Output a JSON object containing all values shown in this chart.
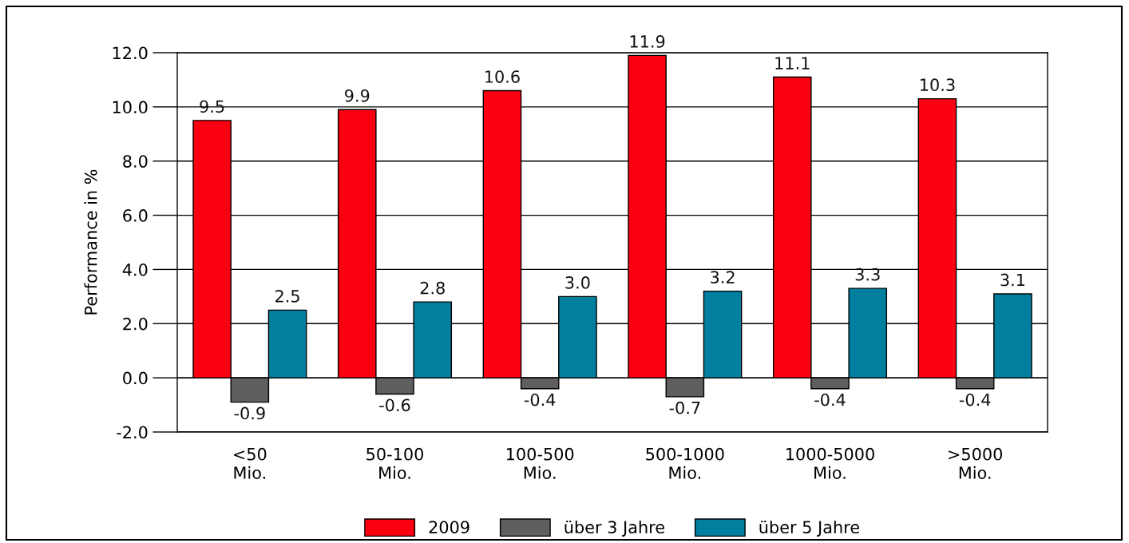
{
  "chart_data": {
    "type": "bar",
    "ylabel": "Performance in %",
    "categories": [
      "<50\nMio.",
      "50-100\nMio.",
      "100-500\nMio.",
      "500-1000\nMio.",
      "1000-5000\nMio.",
      ">5000\nMio."
    ],
    "series": [
      {
        "name": "2009",
        "color": "#fb0010",
        "values": [
          9.5,
          9.9,
          10.6,
          11.9,
          11.1,
          10.3
        ],
        "value_labels": [
          "9.5",
          "9.9",
          "10.6",
          "11.9",
          "11.1",
          "10.3"
        ]
      },
      {
        "name": "über 3 Jahre",
        "color": "#5f5f5f",
        "values": [
          -0.9,
          -0.6,
          -0.4,
          -0.7,
          -0.4,
          -0.4
        ],
        "value_labels": [
          "-0.9",
          "-0.6",
          "-0.4",
          "-0.7",
          "-0.4",
          "-0.4"
        ]
      },
      {
        "name": "über 5 Jahre",
        "color": "#00809e",
        "values": [
          2.5,
          2.8,
          3.0,
          3.2,
          3.3,
          3.1
        ],
        "value_labels": [
          "2.5",
          "2.8",
          "3.0",
          "3.2",
          "3.3",
          "3.1"
        ]
      }
    ],
    "ylim": [
      -2,
      12
    ],
    "yticks": [
      {
        "value": -2,
        "label": "-2.0"
      },
      {
        "value": 0,
        "label": "0.0"
      },
      {
        "value": 2,
        "label": "2.0"
      },
      {
        "value": 4,
        "label": "4.0"
      },
      {
        "value": 6,
        "label": "6.0"
      },
      {
        "value": 8,
        "label": "8.0"
      },
      {
        "value": 10,
        "label": "10.0"
      },
      {
        "value": 12,
        "label": "12.0"
      }
    ],
    "grid": "y",
    "legend": "bottom"
  }
}
